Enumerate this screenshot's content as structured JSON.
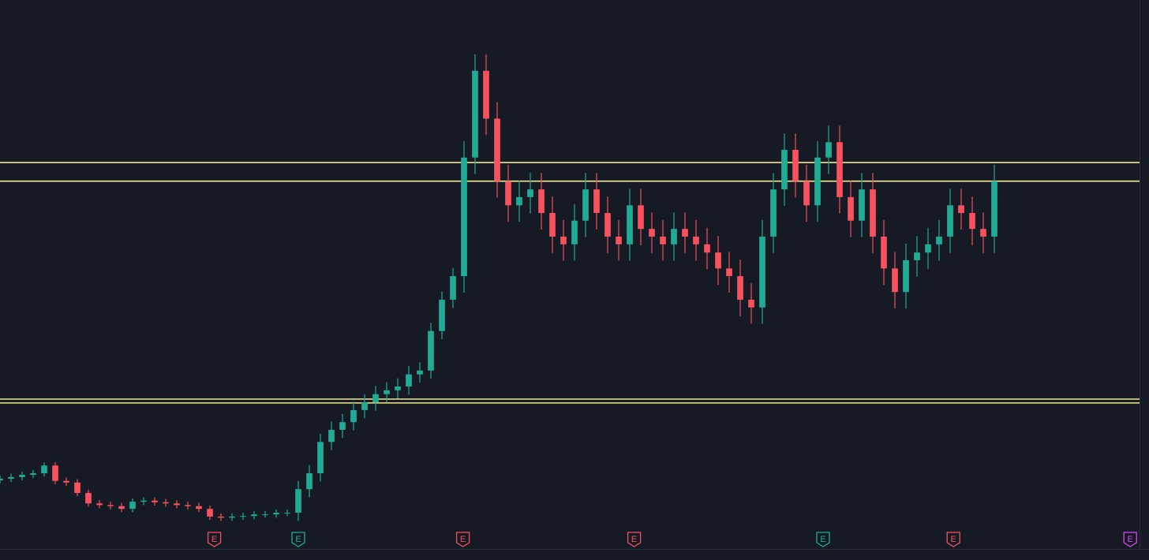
{
  "chart_data": {
    "type": "candlestick",
    "xlim": [
      0,
      104
    ],
    "ylim": [
      0,
      100
    ],
    "up_color": "#22ab94",
    "down_color": "#f7525f",
    "x": [
      0,
      1,
      2,
      3,
      4,
      5,
      6,
      7,
      8,
      9,
      10,
      11,
      12,
      13,
      14,
      15,
      16,
      17,
      18,
      19,
      20,
      21,
      22,
      23,
      24,
      25,
      26,
      27,
      28,
      29,
      30,
      31,
      32,
      33,
      34,
      35,
      36,
      37,
      38,
      39,
      40,
      41,
      42,
      43,
      44,
      45,
      46,
      47,
      48,
      49,
      50,
      51,
      52,
      53,
      54,
      55,
      56,
      57,
      58,
      59,
      60,
      61,
      62,
      63,
      64,
      65,
      66,
      67,
      68,
      69,
      70,
      71,
      72,
      73,
      74,
      75,
      76,
      77,
      78,
      79,
      80,
      81,
      82,
      83,
      84,
      85,
      86,
      87,
      88,
      89,
      90
    ],
    "open": [
      12.5,
      12.8,
      13.1,
      13.5,
      13.8,
      15.2,
      12.4,
      12.1,
      10.2,
      8.3,
      8.0,
      7.8,
      7.3,
      8.6,
      8.8,
      8.5,
      8.3,
      8.0,
      7.8,
      7.3,
      5.9,
      5.7,
      5.9,
      6.0,
      6.3,
      6.3,
      6.6,
      6.6,
      10.9,
      13.8,
      19.5,
      21.7,
      23.1,
      25.3,
      26.7,
      28.2,
      28.9,
      29.6,
      31.8,
      32.5,
      39.7,
      45.4,
      49.7,
      71.3,
      87.1,
      78.4,
      67.0,
      62.6,
      64.1,
      65.5,
      61.2,
      56.9,
      55.5,
      59.8,
      65.5,
      61.2,
      56.9,
      55.5,
      62.6,
      58.3,
      56.9,
      55.5,
      58.3,
      56.9,
      55.5,
      54.0,
      51.1,
      49.7,
      45.4,
      44.0,
      56.9,
      65.5,
      72.7,
      67.0,
      62.6,
      71.3,
      74.1,
      64.1,
      59.8,
      65.5,
      56.9,
      51.1,
      46.8,
      52.6,
      54.0,
      55.5,
      56.9,
      62.6,
      61.2,
      58.3,
      56.9
    ],
    "high": [
      13.4,
      13.7,
      14.1,
      14.4,
      15.8,
      15.8,
      13.0,
      12.7,
      10.8,
      8.9,
      8.6,
      8.4,
      9.2,
      9.4,
      9.4,
      9.1,
      8.9,
      8.6,
      8.4,
      7.9,
      6.5,
      6.5,
      6.6,
      6.9,
      6.9,
      7.2,
      7.2,
      12.4,
      15.3,
      21.0,
      23.2,
      24.6,
      26.8,
      28.2,
      29.7,
      30.4,
      31.1,
      33.3,
      34.0,
      41.2,
      46.9,
      51.2,
      74.3,
      90.1,
      90.1,
      81.4,
      70.0,
      67.1,
      68.5,
      68.5,
      64.2,
      59.9,
      62.8,
      68.5,
      68.5,
      64.2,
      59.9,
      65.6,
      65.6,
      61.3,
      59.9,
      61.3,
      61.3,
      59.9,
      58.5,
      57.0,
      54.1,
      52.7,
      48.4,
      59.9,
      68.5,
      75.7,
      75.7,
      70.0,
      74.3,
      77.1,
      77.1,
      67.1,
      68.5,
      68.5,
      59.9,
      54.1,
      55.6,
      57.0,
      58.5,
      59.9,
      65.6,
      65.6,
      64.2,
      61.3,
      70.0
    ],
    "low": [
      11.9,
      12.2,
      12.5,
      12.9,
      13.2,
      11.8,
      11.5,
      9.6,
      7.7,
      7.4,
      7.2,
      6.7,
      6.7,
      8.0,
      7.9,
      7.7,
      7.4,
      7.2,
      6.7,
      5.3,
      5.1,
      5.1,
      5.3,
      5.4,
      5.7,
      5.7,
      6.0,
      5.1,
      9.4,
      12.3,
      18.0,
      20.2,
      21.6,
      23.8,
      25.2,
      26.7,
      27.4,
      28.1,
      30.3,
      31.0,
      38.2,
      43.9,
      46.7,
      68.3,
      75.4,
      64.0,
      59.6,
      59.6,
      61.1,
      58.2,
      53.9,
      52.5,
      52.5,
      56.8,
      58.2,
      53.9,
      52.5,
      52.5,
      55.3,
      53.9,
      52.5,
      52.5,
      53.9,
      52.5,
      51.0,
      48.1,
      46.7,
      42.4,
      41.0,
      41.0,
      53.9,
      62.5,
      64.0,
      59.6,
      59.6,
      68.3,
      61.1,
      56.8,
      56.8,
      53.9,
      48.1,
      43.8,
      43.8,
      49.6,
      51.0,
      52.5,
      53.9,
      58.2,
      55.3,
      53.9,
      53.9
    ],
    "close": [
      12.8,
      13.1,
      13.5,
      13.8,
      15.2,
      12.4,
      12.1,
      10.2,
      8.3,
      8.0,
      7.8,
      7.3,
      8.6,
      8.8,
      8.5,
      8.3,
      8.0,
      7.8,
      7.3,
      5.9,
      5.7,
      5.9,
      6.0,
      6.3,
      6.3,
      6.6,
      6.6,
      10.9,
      13.8,
      19.5,
      21.7,
      23.1,
      25.3,
      26.7,
      28.2,
      28.9,
      29.6,
      31.8,
      32.5,
      39.7,
      45.4,
      49.7,
      71.3,
      87.1,
      78.4,
      67.0,
      62.6,
      64.1,
      65.5,
      61.2,
      56.9,
      55.5,
      59.8,
      65.5,
      61.2,
      56.9,
      55.5,
      62.6,
      58.3,
      56.9,
      55.5,
      58.3,
      56.9,
      55.5,
      54.0,
      51.1,
      49.7,
      45.4,
      44.0,
      56.9,
      65.5,
      72.7,
      67.0,
      62.6,
      71.3,
      74.1,
      64.1,
      59.8,
      65.5,
      56.9,
      51.1,
      46.8,
      52.6,
      54.0,
      55.5,
      56.9,
      62.6,
      61.2,
      58.3,
      56.9,
      67.0
    ],
    "hlines": [
      70.4,
      67.0,
      27.3,
      26.6
    ],
    "hline_color": "#f2e88c",
    "events": [
      {
        "x": 19.4,
        "label": "E",
        "color": "#f7525f"
      },
      {
        "x": 27.0,
        "label": "E",
        "color": "#22ab94"
      },
      {
        "x": 41.9,
        "label": "E",
        "color": "#f7525f"
      },
      {
        "x": 57.4,
        "label": "E",
        "color": "#f7525f"
      },
      {
        "x": 74.5,
        "label": "E",
        "color": "#22ab94"
      },
      {
        "x": 86.3,
        "label": "E",
        "color": "#f7525f"
      },
      {
        "x": 102.3,
        "label": "E",
        "color": "#e040fb"
      }
    ]
  }
}
